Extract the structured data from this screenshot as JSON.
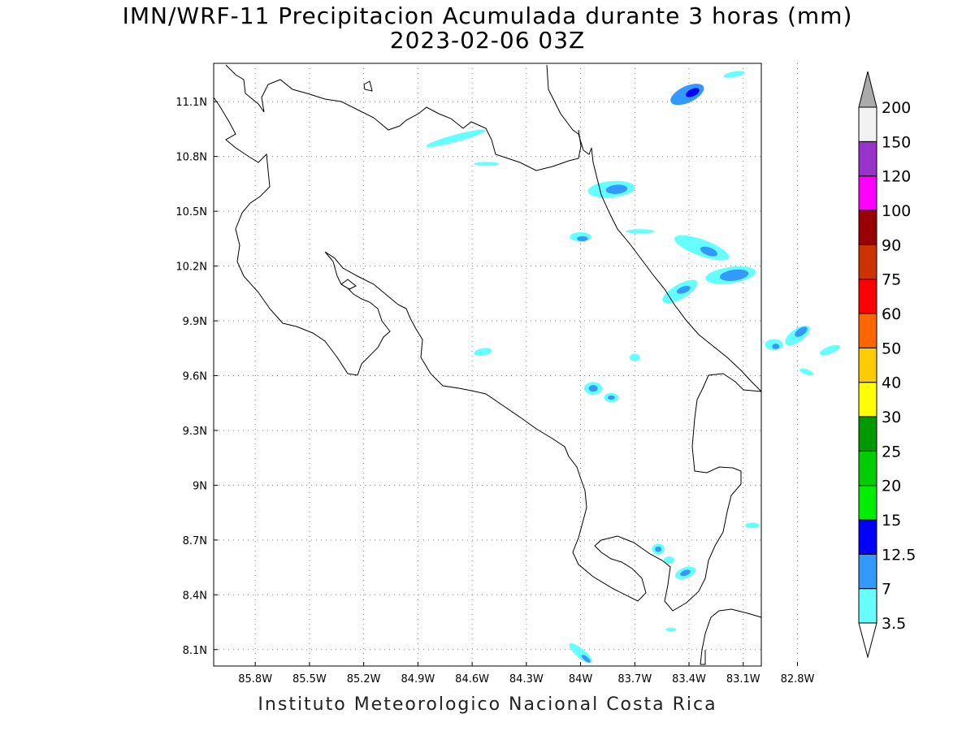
{
  "header": {
    "title": "IMN/WRF-11 Precipitacion Acumulada durante 3 horas (mm)",
    "datetime": "2023-02-06 03Z"
  },
  "footer": {
    "credit": "Instituto Meteorologico Nacional Costa Rica"
  },
  "map": {
    "lon_range": [
      -86.03,
      -83.0
    ],
    "lat_range": [
      8.01,
      11.31
    ],
    "lon_ticks": [
      {
        "value": -85.8,
        "label": "85.8W"
      },
      {
        "value": -85.5,
        "label": "85.5W"
      },
      {
        "value": -85.2,
        "label": "85.2W"
      },
      {
        "value": -84.9,
        "label": "84.9W"
      },
      {
        "value": -84.6,
        "label": "84.6W"
      },
      {
        "value": -84.3,
        "label": "84.3W"
      },
      {
        "value": -84.0,
        "label": "84W"
      },
      {
        "value": -83.7,
        "label": "83.7W"
      },
      {
        "value": -83.4,
        "label": "83.4W"
      },
      {
        "value": -83.1,
        "label": "83.1W"
      },
      {
        "value": -82.8,
        "label": "82.8W"
      }
    ],
    "lat_ticks": [
      {
        "value": 11.1,
        "label": "11.1N"
      },
      {
        "value": 10.8,
        "label": "10.8N"
      },
      {
        "value": 10.5,
        "label": "10.5N"
      },
      {
        "value": 10.2,
        "label": "10.2N"
      },
      {
        "value": 9.9,
        "label": "9.9N"
      },
      {
        "value": 9.6,
        "label": "9.6N"
      },
      {
        "value": 9.3,
        "label": "9.3N"
      },
      {
        "value": 9.0,
        "label": "9N"
      },
      {
        "value": 8.7,
        "label": "8.7N"
      },
      {
        "value": 8.4,
        "label": "8.4N"
      },
      {
        "value": 8.1,
        "label": "8.1N"
      }
    ],
    "grid": true
  },
  "legend": {
    "title": "",
    "levels": [
      {
        "label": "3.5",
        "color": "#66ffff"
      },
      {
        "label": "7",
        "color": "#3399ff"
      },
      {
        "label": "12.5",
        "color": "#0000ff"
      },
      {
        "label": "15",
        "color": "#00ee00"
      },
      {
        "label": "20",
        "color": "#00cc00"
      },
      {
        "label": "25",
        "color": "#009900"
      },
      {
        "label": "30",
        "color": "#ffff00"
      },
      {
        "label": "40",
        "color": "#ffcc00"
      },
      {
        "label": "50",
        "color": "#ff6600"
      },
      {
        "label": "60",
        "color": "#ff0000"
      },
      {
        "label": "75",
        "color": "#cc3300"
      },
      {
        "label": "90",
        "color": "#990000"
      },
      {
        "label": "100",
        "color": "#ff00ff"
      },
      {
        "label": "120",
        "color": "#9933cc"
      },
      {
        "label": "150",
        "color": "#f2f2f2"
      },
      {
        "label": "200",
        "color": "#aaaaaa"
      }
    ]
  },
  "colors": {
    "light": "#66ffff",
    "medium": "#3399ff",
    "dark": "#0000ff",
    "coast": "#000000",
    "grid": "#888888"
  },
  "precip_cells": [
    {
      "lon": -83.41,
      "lat": 11.14,
      "rx": 0.1,
      "ry": 0.045,
      "rot": -25,
      "level": 1
    },
    {
      "lon": -83.38,
      "lat": 11.15,
      "rx": 0.04,
      "ry": 0.02,
      "rot": -25,
      "level": 2
    },
    {
      "lon": -83.15,
      "lat": 11.25,
      "rx": 0.06,
      "ry": 0.015,
      "rot": -10,
      "level": 0
    },
    {
      "lon": -84.69,
      "lat": 10.9,
      "rx": 0.17,
      "ry": 0.02,
      "rot": -15,
      "level": 0
    },
    {
      "lon": -84.52,
      "lat": 10.76,
      "rx": 0.07,
      "ry": 0.01,
      "rot": 0,
      "level": 0
    },
    {
      "lon": -83.83,
      "lat": 10.62,
      "rx": 0.13,
      "ry": 0.045,
      "rot": -5,
      "level": 0
    },
    {
      "lon": -83.8,
      "lat": 10.62,
      "rx": 0.06,
      "ry": 0.025,
      "rot": -5,
      "level": 1
    },
    {
      "lon": -84.0,
      "lat": 10.36,
      "rx": 0.06,
      "ry": 0.025,
      "rot": 0,
      "level": 0
    },
    {
      "lon": -83.99,
      "lat": 10.35,
      "rx": 0.03,
      "ry": 0.014,
      "rot": 0,
      "level": 1
    },
    {
      "lon": -83.67,
      "lat": 10.39,
      "rx": 0.08,
      "ry": 0.012,
      "rot": 0,
      "level": 0
    },
    {
      "lon": -83.33,
      "lat": 10.3,
      "rx": 0.16,
      "ry": 0.045,
      "rot": 20,
      "level": 0
    },
    {
      "lon": -83.29,
      "lat": 10.28,
      "rx": 0.05,
      "ry": 0.022,
      "rot": 20,
      "level": 1
    },
    {
      "lon": -83.17,
      "lat": 10.15,
      "rx": 0.14,
      "ry": 0.045,
      "rot": -8,
      "level": 0
    },
    {
      "lon": -83.15,
      "lat": 10.15,
      "rx": 0.08,
      "ry": 0.03,
      "rot": -8,
      "level": 1
    },
    {
      "lon": -83.45,
      "lat": 10.06,
      "rx": 0.11,
      "ry": 0.04,
      "rot": -30,
      "level": 0
    },
    {
      "lon": -83.43,
      "lat": 10.07,
      "rx": 0.04,
      "ry": 0.018,
      "rot": -20,
      "level": 1
    },
    {
      "lon": -82.8,
      "lat": 9.82,
      "rx": 0.08,
      "ry": 0.035,
      "rot": -35,
      "level": 0
    },
    {
      "lon": -82.78,
      "lat": 9.84,
      "rx": 0.04,
      "ry": 0.02,
      "rot": -35,
      "level": 1
    },
    {
      "lon": -82.93,
      "lat": 9.77,
      "rx": 0.05,
      "ry": 0.03,
      "rot": 0,
      "level": 0
    },
    {
      "lon": -82.92,
      "lat": 9.76,
      "rx": 0.02,
      "ry": 0.015,
      "rot": 0,
      "level": 1
    },
    {
      "lon": -82.62,
      "lat": 9.74,
      "rx": 0.06,
      "ry": 0.02,
      "rot": -20,
      "level": 0
    },
    {
      "lon": -82.75,
      "lat": 9.62,
      "rx": 0.04,
      "ry": 0.015,
      "rot": 20,
      "level": 0
    },
    {
      "lon": -84.54,
      "lat": 9.73,
      "rx": 0.05,
      "ry": 0.02,
      "rot": -10,
      "level": 0
    },
    {
      "lon": -83.7,
      "lat": 9.7,
      "rx": 0.03,
      "ry": 0.02,
      "rot": 0,
      "level": 0
    },
    {
      "lon": -83.93,
      "lat": 9.53,
      "rx": 0.05,
      "ry": 0.035,
      "rot": 0,
      "level": 0
    },
    {
      "lon": -83.93,
      "lat": 9.53,
      "rx": 0.025,
      "ry": 0.018,
      "rot": 0,
      "level": 1
    },
    {
      "lon": -83.83,
      "lat": 9.48,
      "rx": 0.04,
      "ry": 0.025,
      "rot": 0,
      "level": 0
    },
    {
      "lon": -83.83,
      "lat": 9.48,
      "rx": 0.02,
      "ry": 0.012,
      "rot": 0,
      "level": 1
    },
    {
      "lon": -83.57,
      "lat": 8.65,
      "rx": 0.035,
      "ry": 0.03,
      "rot": 0,
      "level": 0
    },
    {
      "lon": -83.57,
      "lat": 8.65,
      "rx": 0.018,
      "ry": 0.015,
      "rot": 0,
      "level": 1
    },
    {
      "lon": -83.51,
      "lat": 8.59,
      "rx": 0.03,
      "ry": 0.02,
      "rot": 0,
      "level": 0
    },
    {
      "lon": -83.42,
      "lat": 8.52,
      "rx": 0.06,
      "ry": 0.03,
      "rot": -20,
      "level": 0
    },
    {
      "lon": -83.42,
      "lat": 8.52,
      "rx": 0.03,
      "ry": 0.015,
      "rot": -20,
      "level": 1
    },
    {
      "lon": -83.05,
      "lat": 8.78,
      "rx": 0.04,
      "ry": 0.015,
      "rot": 0,
      "level": 0
    },
    {
      "lon": -84.0,
      "lat": 8.08,
      "rx": 0.08,
      "ry": 0.025,
      "rot": 40,
      "level": 0
    },
    {
      "lon": -83.97,
      "lat": 8.05,
      "rx": 0.03,
      "ry": 0.012,
      "rot": 40,
      "level": 1
    },
    {
      "lon": -83.5,
      "lat": 8.21,
      "rx": 0.03,
      "ry": 0.01,
      "rot": 0,
      "level": 0
    }
  ]
}
